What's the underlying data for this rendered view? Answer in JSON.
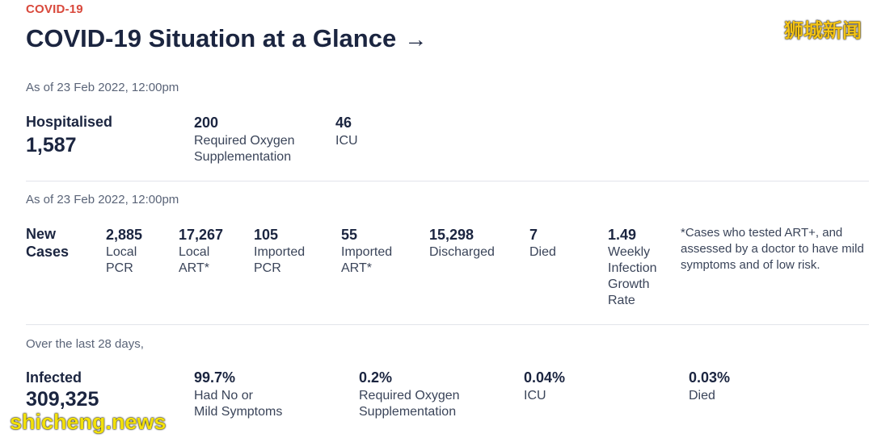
{
  "header": {
    "eyebrow": "COVID-19",
    "title": "COVID-19 Situation at a Glance",
    "arrow": "→"
  },
  "watermarks": {
    "top": "狮城新闻",
    "bottom": "shicheng.news"
  },
  "hospital": {
    "asof": "As of 23 Feb 2022, 12:00pm",
    "label": "Hospitalised",
    "total": "1,587",
    "oxygen_value": "200",
    "oxygen_label_1": "Required Oxygen",
    "oxygen_label_2": "Supplementation",
    "icu_value": "46",
    "icu_label": "ICU"
  },
  "cases": {
    "asof": "As of 23 Feb 2022, 12:00pm",
    "label_1": "New",
    "label_2": "Cases",
    "local_pcr": {
      "value": "2,885",
      "l1": "Local",
      "l2": "PCR"
    },
    "local_art": {
      "value": "17,267",
      "l1": "Local",
      "l2": "ART*"
    },
    "imported_pcr": {
      "value": "105",
      "l1": "Imported",
      "l2": "PCR"
    },
    "imported_art": {
      "value": "55",
      "l1": "Imported",
      "l2": "ART*"
    },
    "discharged": {
      "value": "15,298",
      "l1": "Discharged"
    },
    "died": {
      "value": "7",
      "l1": "Died"
    },
    "growth": {
      "value": "1.49",
      "l1": "Weekly",
      "l2": "Infection",
      "l3": "Growth",
      "l4": "Rate"
    },
    "note": "*Cases who tested ART+, and assessed by a doctor to have mild symptoms and of low risk."
  },
  "last28": {
    "asof": "Over the last 28 days,",
    "label": "Infected",
    "total": "309,325",
    "mild": {
      "value": "99.7%",
      "l1": "Had No or",
      "l2": "Mild Symptoms"
    },
    "oxygen": {
      "value": "0.2%",
      "l1": "Required Oxygen",
      "l2": "Supplementation"
    },
    "icu": {
      "value": "0.04%",
      "l1": "ICU"
    },
    "died": {
      "value": "0.03%",
      "l1": "Died"
    }
  }
}
